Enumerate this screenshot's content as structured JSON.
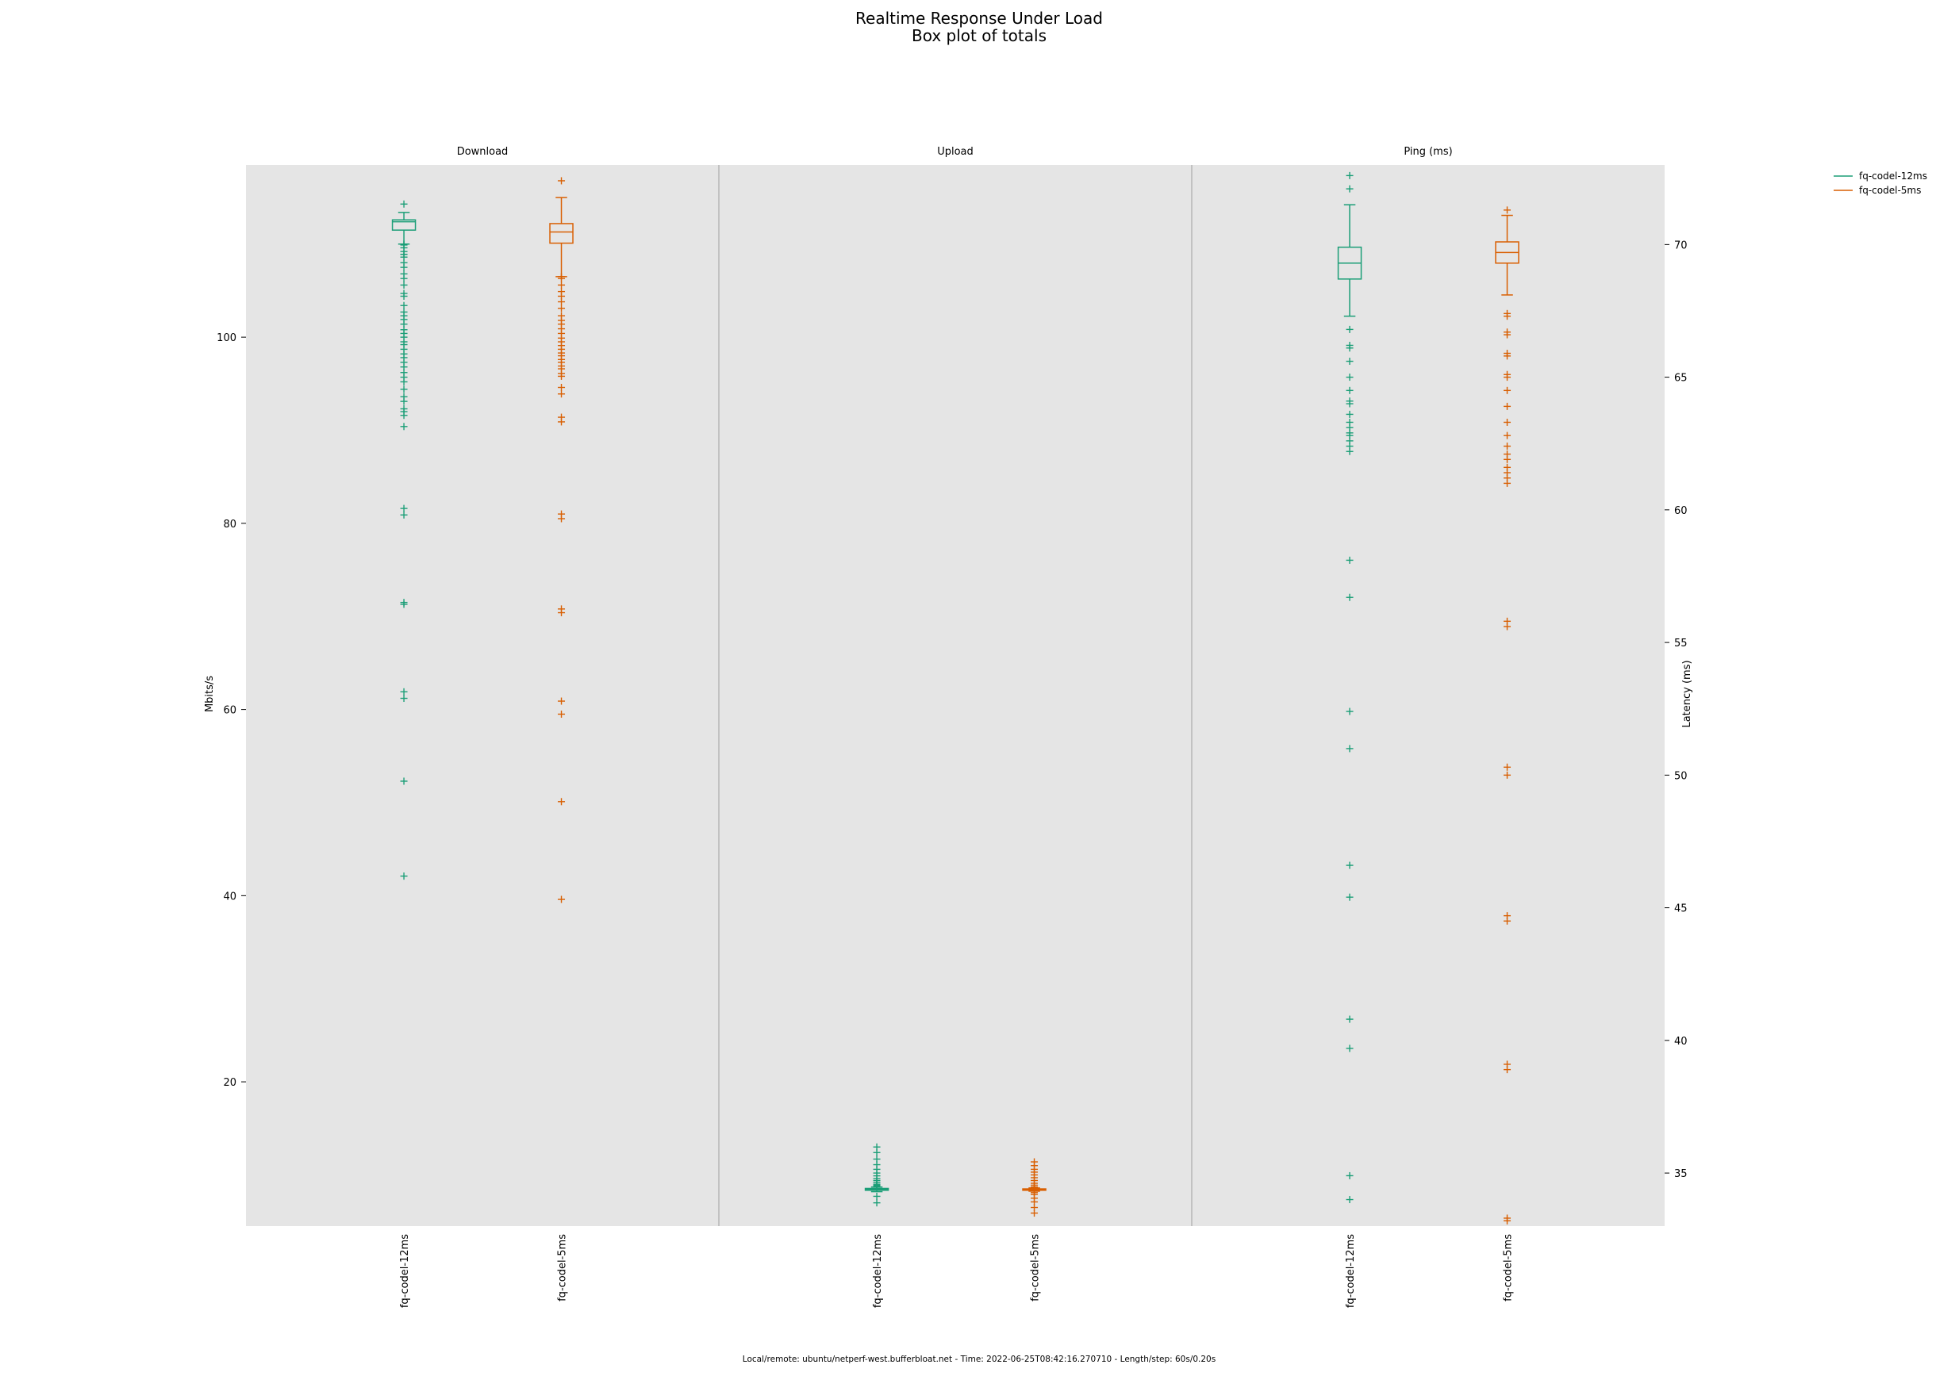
{
  "chart_data": {
    "type": "box",
    "title": "Realtime Response Under Load",
    "subtitle": "Box plot of totals",
    "footer": "Local/remote: ubuntu/netperf-west.bufferbloat.net - Time: 2022-06-25T08:42:16.270710 - Length/step: 60s/0.20s",
    "left_axis": {
      "label": "Mbits/s",
      "ticks": [
        20,
        40,
        60,
        80,
        100
      ],
      "range": [
        4.5,
        118.5
      ]
    },
    "right_axis": {
      "label": "Latency (ms)",
      "ticks": [
        35,
        40,
        45,
        50,
        55,
        60,
        65,
        70
      ],
      "range": [
        33.0,
        73.0
      ]
    },
    "categories": [
      "fq-codel-12ms",
      "fq-codel-5ms"
    ],
    "legend": {
      "placement": "top-right",
      "entries": [
        {
          "label": "fq-codel-12ms",
          "color": "#1b9e77"
        },
        {
          "label": "fq-codel-5ms",
          "color": "#d95f02"
        }
      ]
    },
    "panels": [
      {
        "title": "Download",
        "axis": "left",
        "series": [
          {
            "name": "fq-codel-12ms",
            "color": "#1b9e77",
            "whisker_low": 110,
            "q1": 111.5,
            "median": 112.4,
            "q3": 112.6,
            "whisker_high": 113.4,
            "outliers": [
              114.3,
              110,
              109.9,
              109.6,
              109.2,
              108.9,
              108.9,
              108.6,
              108,
              107.5,
              106.8,
              106.3,
              105.6,
              104.7,
              104.4,
              103.4,
              102.7,
              102.3,
              101.9,
              101.4,
              100.8,
              100.4,
              100,
              99.5,
              99.2,
              98.7,
              98.2,
              97.8,
              97.3,
              96.8,
              96.2,
              95.7,
              95.2,
              94.4,
              93.6,
              93.1,
              92.3,
              92,
              91.6,
              90.4,
              81.6,
              80.9,
              71.5,
              71.3,
              61.9,
              61.2,
              52.3,
              42.1
            ]
          },
          {
            "name": "fq-codel-5ms",
            "color": "#d95f02",
            "whisker_low": 106.5,
            "q1": 110.1,
            "median": 111.3,
            "q3": 112.2,
            "whisker_high": 115.0,
            "outliers": [
              116.8,
              106.5,
              106.3,
              105.6,
              104.9,
              104.4,
              103.8,
              103.1,
              102.3,
              101.8,
              101.4,
              100.9,
              100.4,
              99.9,
              99.5,
              99.1,
              98.7,
              98.3,
              98.0,
              97.6,
              97.3,
              96.9,
              96.6,
              96.1,
              95.8,
              94.6,
              93.9,
              91.4,
              90.9,
              81.0,
              80.5,
              70.8,
              70.4,
              60.9,
              59.5,
              50.1,
              39.6
            ]
          }
        ]
      },
      {
        "title": "Upload",
        "axis": "left",
        "series": [
          {
            "name": "fq-codel-12ms",
            "color": "#1b9e77",
            "whisker_low": 8.2,
            "q1": 8.35,
            "median": 8.45,
            "q3": 8.55,
            "whisker_high": 8.7,
            "outliers": [
              13.0,
              12.4,
              11.7,
              11.1,
              10.6,
              10.2,
              9.9,
              9.6,
              9.4,
              9.2,
              9.0,
              8.9,
              8.8,
              7.7,
              7.0
            ]
          },
          {
            "name": "fq-codel-5ms",
            "color": "#d95f02",
            "whisker_low": 8.25,
            "q1": 8.35,
            "median": 8.4,
            "q3": 8.5,
            "whisker_high": 8.6,
            "outliers": [
              11.4,
              11.0,
              10.6,
              10.3,
              10.0,
              9.7,
              9.4,
              9.1,
              8.9,
              8.7,
              8.1,
              7.9,
              7.5,
              7.1,
              6.5,
              5.9
            ]
          }
        ]
      },
      {
        "title": "Ping (ms)",
        "axis": "right",
        "series": [
          {
            "name": "fq-codel-12ms",
            "color": "#1b9e77",
            "whisker_low": 67.3,
            "q1": 68.7,
            "median": 69.3,
            "q3": 69.9,
            "whisker_high": 71.5,
            "outliers": [
              72.6,
              72.1,
              66.8,
              66.2,
              66.1,
              65.6,
              65.0,
              64.5,
              64.1,
              64.0,
              63.6,
              63.3,
              63.1,
              62.9,
              62.8,
              62.6,
              62.4,
              62.2,
              58.1,
              56.7,
              52.4,
              51.0,
              46.6,
              45.4,
              40.8,
              39.7,
              34.9,
              34.0
            ]
          },
          {
            "name": "fq-codel-5ms",
            "color": "#d95f02",
            "whisker_low": 68.1,
            "q1": 69.3,
            "median": 69.7,
            "q3": 70.1,
            "whisker_high": 71.1,
            "outliers": [
              71.3,
              67.4,
              67.3,
              66.7,
              66.6,
              65.9,
              65.8,
              65.1,
              65.0,
              64.5,
              63.9,
              63.3,
              62.8,
              62.4,
              62.1,
              61.9,
              61.6,
              61.4,
              61.2,
              61.0,
              55.8,
              55.6,
              50.3,
              50.0,
              44.7,
              44.5,
              39.1,
              38.9,
              33.3,
              33.2
            ]
          }
        ]
      }
    ]
  }
}
